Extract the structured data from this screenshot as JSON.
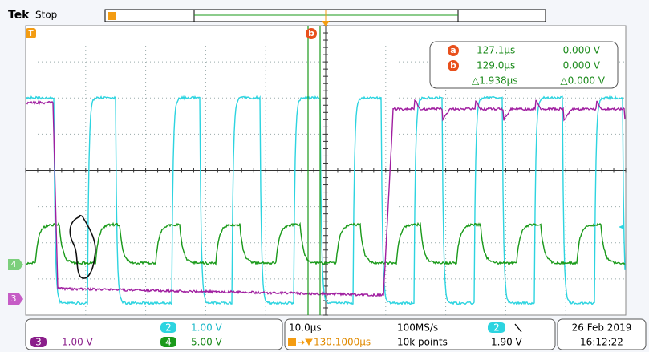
{
  "header": {
    "brand": "Tek",
    "status": "Stop"
  },
  "markers": {
    "trigger": "T",
    "cursor_b": "b",
    "ch4": "4",
    "ch3": "3"
  },
  "cursors": {
    "a": {
      "label": "a",
      "time": "127.1µs",
      "volts": "0.000 V"
    },
    "b": {
      "label": "b",
      "time": "129.0µs",
      "volts": "0.000 V"
    },
    "delta": {
      "time": "△1.938µs",
      "volts": "△0.000 V"
    }
  },
  "channels": {
    "ch2": {
      "label": "2",
      "scale": "1.00 V"
    },
    "ch3": {
      "label": "3",
      "scale": "1.00 V"
    },
    "ch4": {
      "label": "4",
      "scale": "5.00 V"
    }
  },
  "acquisition": {
    "timebase": "10.0µs",
    "sample_rate": "100MS/s",
    "trigger_position": "130.1000µs",
    "record_length": "10k points",
    "trigger_source": "2",
    "trigger_level": "1.90 V"
  },
  "timestamp": {
    "date": "26 Feb 2019",
    "time": "16:12:22"
  }
}
